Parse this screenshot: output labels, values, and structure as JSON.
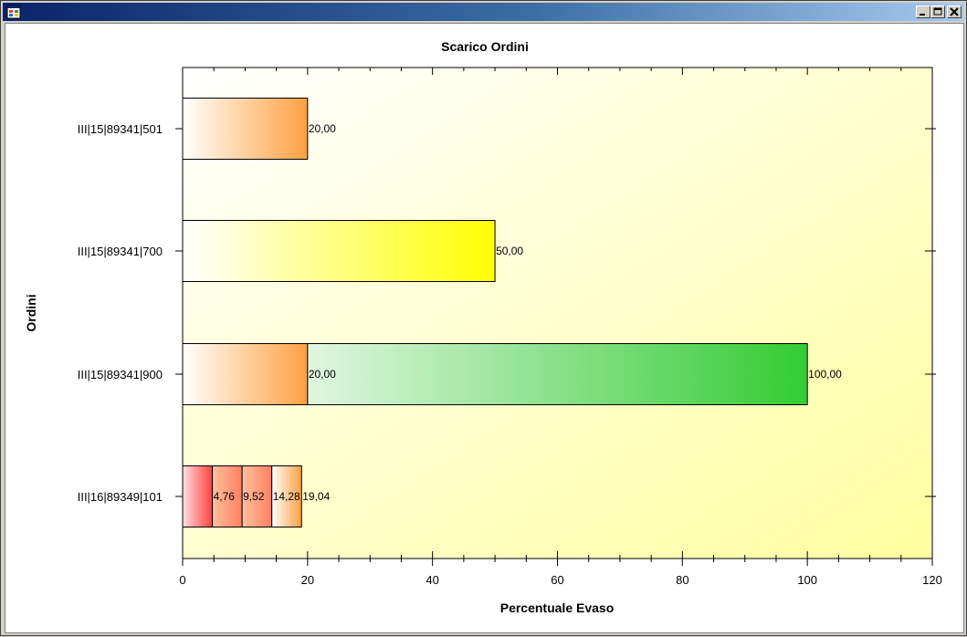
{
  "window": {
    "title": "",
    "icon": "app-window-icon",
    "controls": {
      "minimize": "minimize-icon",
      "maximize": "maximize-icon",
      "close": "close-icon"
    }
  },
  "colors": {
    "titlebar_start": "#0a246a",
    "titlebar_end": "#a6caf0",
    "plot_bg_start": "#ffffff",
    "plot_bg_end": "#ffffa0",
    "orange": "#ffa040",
    "yellow": "#ffff00",
    "green": "#33cc33",
    "red": "#ff4040"
  },
  "chart_data": {
    "type": "bar",
    "orientation": "horizontal",
    "stacked": true,
    "title": "Scarico Ordini",
    "xlabel": "Percentuale Evaso",
    "ylabel": "Ordini",
    "xlim": [
      0,
      120
    ],
    "x_ticks": [
      "0",
      "20",
      "40",
      "60",
      "80",
      "100",
      "120"
    ],
    "grid": false,
    "legend": "none",
    "categories": [
      "III|15|89341|501",
      "III|15|89341|700",
      "III|15|89341|900",
      "III|16|89349|101"
    ],
    "rows": [
      {
        "category": "III|15|89341|501",
        "segments": [
          {
            "from": 0,
            "to": 20,
            "label": "20,00",
            "color": "orange"
          }
        ]
      },
      {
        "category": "III|15|89341|700",
        "segments": [
          {
            "from": 0,
            "to": 50,
            "label": "50,00",
            "color": "yellow"
          }
        ]
      },
      {
        "category": "III|15|89341|900",
        "segments": [
          {
            "from": 0,
            "to": 20,
            "label": "20,00",
            "color": "orange"
          },
          {
            "from": 20,
            "to": 100,
            "label": "100,00",
            "color": "green"
          }
        ]
      },
      {
        "category": "III|16|89349|101",
        "segments": [
          {
            "from": 0,
            "to": 4.76,
            "label": "4,76",
            "color": "red"
          },
          {
            "from": 4.76,
            "to": 9.52,
            "label": "9,52",
            "color": "salmon"
          },
          {
            "from": 9.52,
            "to": 14.28,
            "label": "14,28",
            "color": "salmon"
          },
          {
            "from": 14.28,
            "to": 19.04,
            "label": "19,04",
            "color": "orange"
          }
        ]
      }
    ]
  }
}
